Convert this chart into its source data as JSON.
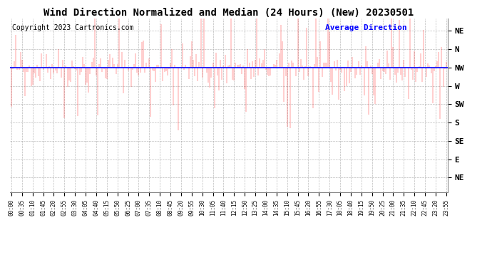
{
  "title": "Wind Direction Normalized and Median (24 Hours) (New) 20230501",
  "copyright": "Copyright 2023 Cartronics.com",
  "legend_text": "Average Direction",
  "legend_color": "blue",
  "wind_line_color": "red",
  "avg_line_color": "blue",
  "background_color": "#ffffff",
  "grid_color": "#aaaaaa",
  "title_fontsize": 10,
  "avg_value": 315,
  "num_points": 288,
  "ytick_positions": [
    360,
    337.5,
    315,
    292.5,
    270,
    247.5,
    225,
    202.5,
    180
  ],
  "ytick_names": [
    "NE",
    "N",
    "NW",
    "W",
    "SW",
    "S",
    "SE",
    "E",
    "NE"
  ],
  "ymin": 162,
  "ymax": 375,
  "tick_step": 7,
  "noise_std": 12,
  "spike_prob": 0.08,
  "spike_min": 20,
  "spike_max": 60,
  "copyright_fontsize": 7,
  "legend_fontsize": 8,
  "ytick_fontsize": 8,
  "xtick_fontsize": 5.5
}
